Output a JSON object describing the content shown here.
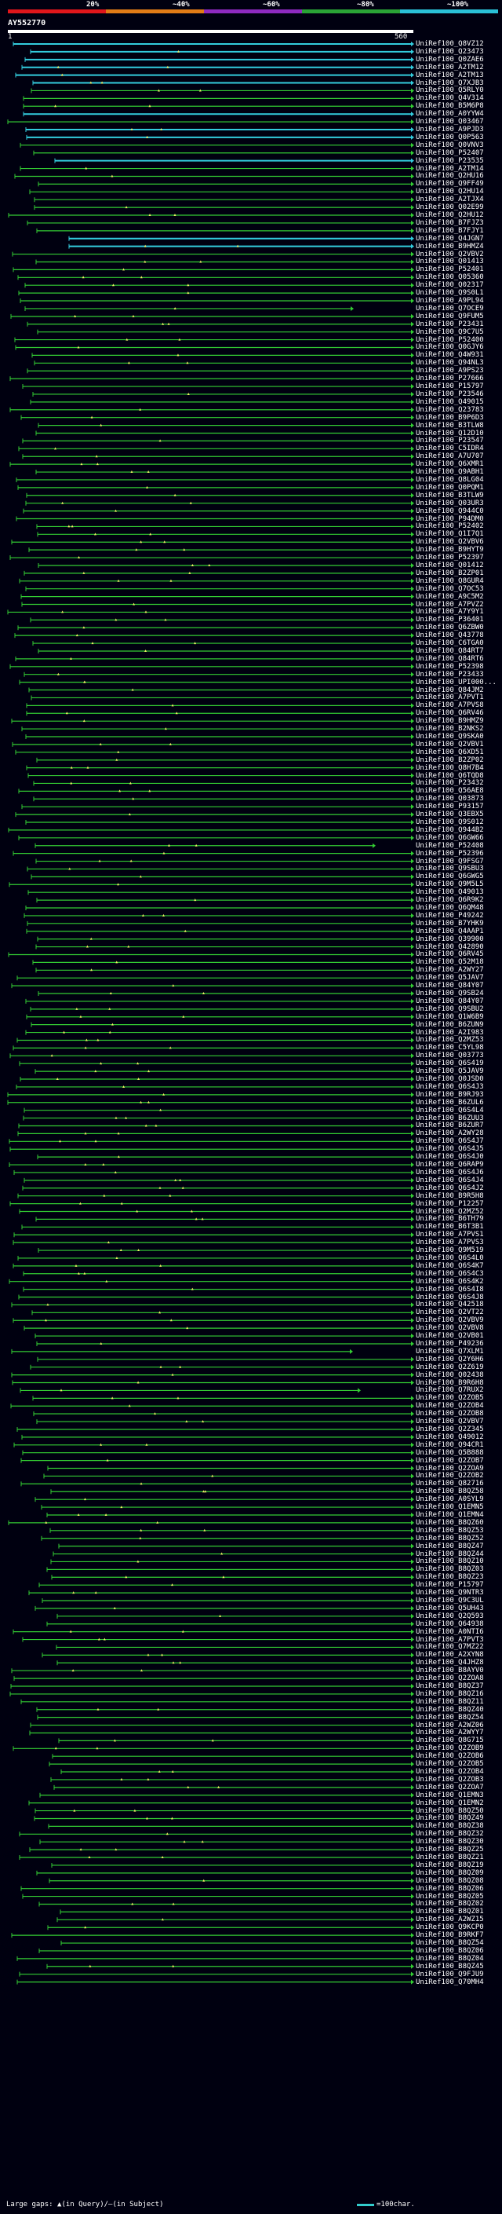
{
  "legend": {
    "labels": [
      "20%",
      "~40%",
      "~60%",
      "~80%",
      "~100%"
    ],
    "colors": [
      "#e0161b",
      "#e07b16",
      "#8e2ac0",
      "#2aa336",
      "#2ac0d6"
    ]
  },
  "query": {
    "id": "AY552770",
    "start": "1",
    "end": "560"
  },
  "footer": {
    "gaps_text": "Large gaps: ▲(in Query)/–(in Subject)",
    "scale_text": "=100char."
  },
  "hit_colors": {
    "high": "#33ccdd",
    "mid": "#33cc33"
  },
  "hits": [
    "UniRef100_Q8VZ12",
    "UniRef100_Q23473",
    "UniRef100_Q0ZAE6",
    "UniRef100_A2TM12",
    "UniRef100_A2TM13",
    "UniRef100_Q7XJB3",
    "UniRef100_Q5RLY0",
    "UniRef100_Q4V314",
    "UniRef100_B5M6P8",
    "UniRef100_A0YYW4",
    "UniRef100_Q03467",
    "UniRef100_A9PJD3",
    "UniRef100_Q0P563",
    "UniRef100_Q0VNV3",
    "UniRef100_P52407",
    "UniRef100_P23535",
    "UniRef100_A2TM14",
    "UniRef100_Q2HU16",
    "UniRef100_Q9FF49",
    "UniRef100_Q2HU14",
    "UniRef100_A2TJX4",
    "UniRef100_Q02E99",
    "UniRef100_Q2HU12",
    "UniRef100_B7FJZ3",
    "UniRef100_B7FJY1",
    "UniRef100_Q4JGN7",
    "UniRef100_B9HMZ4",
    "UniRef100_Q2VBV2",
    "UniRef100_Q01413",
    "UniRef100_P52401",
    "UniRef100_Q05360",
    "UniRef100_Q02317",
    "UniRef100_Q9S0L1",
    "UniRef100_A9PL94",
    "UniRef100_Q7OCE9",
    "UniRef100_Q9FUM5",
    "UniRef100_P23431",
    "UniRef100_Q9C7U5",
    "UniRef100_P52400",
    "UniRef100_Q0GJY6",
    "UniRef100_Q4W931",
    "UniRef100_Q94NL3",
    "UniRef100_A9PS23",
    "UniRef100_P27666",
    "UniRef100_P15797",
    "UniRef100_P23546",
    "UniRef100_Q49015",
    "UniRef100_Q23783",
    "UniRef100_B9P6D3",
    "UniRef100_B3TLW8",
    "UniRef100_Q12D10",
    "UniRef100_P23547",
    "UniRef100_C5IDR4",
    "UniRef100_A7U707",
    "UniRef100_Q6XMR1",
    "UniRef100_Q9ABH1",
    "UniRef100_Q8LG04",
    "UniRef100_Q0PQM1",
    "UniRef100_B3TLW9",
    "UniRef100_Q03UR3",
    "UniRef100_Q944C0",
    "UniRef100_P94DM0",
    "UniRef100_P52402",
    "UniRef100_Q1I7Q1",
    "UniRef100_Q2VBV6",
    "UniRef100_B9HYT9",
    "UniRef100_P52397",
    "UniRef100_Q01412",
    "UniRef100_B2ZP01",
    "UniRef100_Q8GUR4",
    "UniRef100_Q7OC53",
    "UniRef100_A9C5M2",
    "UniRef100_A7PVZ2",
    "UniRef100_A7Y9Y1",
    "UniRef100_P36401",
    "UniRef100_Q6ZBW0",
    "UniRef100_Q43778",
    "UniRef100_C6TGA0",
    "UniRef100_Q84RT7",
    "UniRef100_Q84RT6",
    "UniRef100_P52398",
    "UniRef100_P23433",
    "UniRef100_UPI000...",
    "UniRef100_Q84JM2",
    "UniRef100_A7PVT1",
    "UniRef100_A7PVS8",
    "UniRef100_Q6RV46",
    "UniRef100_B9HMZ9",
    "UniRef100_B2NKS2",
    "UniRef100_Q9SKA0",
    "UniRef100_Q2VBV1",
    "UniRef100_Q6XD51",
    "UniRef100_B2ZP02",
    "UniRef100_Q8H7B4",
    "UniRef100_Q6TQD8",
    "UniRef100_P23432",
    "UniRef100_Q56AE8",
    "UniRef100_Q03873",
    "UniRef100_P93157",
    "UniRef100_Q3EBX5",
    "UniRef100_Q9S012",
    "UniRef100_Q944B2",
    "UniRef100_Q6GW66",
    "UniRef100_P52408",
    "UniRef100_P52396",
    "UniRef100_Q9FSG7",
    "UniRef100_Q9SBU3",
    "UniRef100_Q6GWG5",
    "UniRef100_Q9M5L5",
    "UniRef100_Q49013",
    "UniRef100_Q6R9K2",
    "UniRef100_Q6QM48",
    "UniRef100_P49242",
    "UniRef100_B7YHK9",
    "UniRef100_Q4AAP1",
    "UniRef100_Q39900",
    "UniRef100_Q42890",
    "UniRef100_Q6RV45",
    "UniRef100_Q52M18",
    "UniRef100_A2WY27",
    "UniRef100_Q5JAV7",
    "UniRef100_Q84Y07",
    "UniRef100_Q9SB24",
    "UniRef100_Q84Y07",
    "UniRef100_Q9SBU2",
    "UniRef100_Q1W6B9",
    "UniRef100_B6ZUN9",
    "UniRef100_A2I983",
    "UniRef100_Q2MZ53",
    "UniRef100_C5YL98",
    "UniRef100_Q03773",
    "UniRef100_Q6S419",
    "UniRef100_Q5JAV9",
    "UniRef100_Q0JSD0",
    "UniRef100_Q6S4J3",
    "UniRef100_B9RJ93",
    "UniRef100_B6ZUL6",
    "UniRef100_Q6S4L4",
    "UniRef100_B6ZUU3",
    "UniRef100_B6ZUR7",
    "UniRef100_A2WY28",
    "UniRef100_Q6S4J7",
    "UniRef100_Q6S4J5",
    "UniRef100_Q6S4J0",
    "UniRef100_Q6RAP9",
    "UniRef100_Q6S4J6",
    "UniRef100_Q6S4J4",
    "UniRef100_Q6S4J2",
    "UniRef100_B9R5H8",
    "UniRef100_P12257",
    "UniRef100_Q2MZ52",
    "UniRef100_B6TH79",
    "UniRef100_B6T3B1",
    "UniRef100_A7PVS1",
    "UniRef100_A7PVS3",
    "UniRef100_Q9M519",
    "UniRef100_Q6S4L0",
    "UniRef100_Q6S4K7",
    "UniRef100_Q6S4C3",
    "UniRef100_Q6S4K2",
    "UniRef100_Q6S4I8",
    "UniRef100_Q6S4J8",
    "UniRef100_Q42518",
    "UniRef100_Q2VT22",
    "UniRef100_Q2VBV9",
    "UniRef100_Q2VBV8",
    "UniRef100_Q2VB01",
    "UniRef100_P49236",
    "UniRef100_Q7XLM1",
    "UniRef100_Q2Y6H6",
    "UniRef100_Q2Z619",
    "UniRef100_Q02438",
    "UniRef100_B9R6H8",
    "UniRef100_Q7RUX2",
    "UniRef100_Q2ZOB5",
    "UniRef100_Q2ZOB4",
    "UniRef100_Q2ZOB8",
    "UniRef100_Q2VBV7",
    "UniRef100_Q2Z345",
    "UniRef100_Q49012",
    "UniRef100_Q94CR1",
    "UniRef100_Q5B888",
    "UniRef100_Q2ZOB7",
    "UniRef100_Q2ZOA9",
    "UniRef100_Q2ZOB2",
    "UniRef100_Q82716",
    "UniRef100_B8QZ58",
    "UniRef100_A0SYL9",
    "UniRef100_Q1EMN5",
    "UniRef100_Q1EMN4",
    "UniRef100_B8QZ60",
    "UniRef100_B8QZ53",
    "UniRef100_B8QZ52",
    "UniRef100_B8QZ47",
    "UniRef100_B8QZ44",
    "UniRef100_B8QZ10",
    "UniRef100_B8QZ03",
    "UniRef100_B8QZ23",
    "UniRef100_P15797",
    "UniRef100_Q9NTR3",
    "UniRef100_Q9C3UL",
    "UniRef100_Q5UH43",
    "UniRef100_Q2Q593",
    "UniRef100_Q64938",
    "UniRef100_A0NTI6",
    "UniRef100_A7PVT3",
    "UniRef100_Q7MZ22",
    "UniRef100_A2XYN8",
    "UniRef100_Q4JHZ8",
    "UniRef100_B8AYV0",
    "UniRef100_Q2ZOA8",
    "UniRef100_B8QZ37",
    "UniRef100_B8QZ16",
    "UniRef100_B8QZ11",
    "UniRef100_B8QZ40",
    "UniRef100_B8QZ54",
    "UniRef100_A2WZ06",
    "UniRef100_A2WYY7",
    "UniRef100_Q8G715",
    "UniRef100_Q2ZOB9",
    "UniRef100_Q2ZOB6",
    "UniRef100_Q2ZOB5",
    "UniRef100_Q2ZOB4",
    "UniRef100_Q2ZOB3",
    "UniRef100_Q2ZOA7",
    "UniRef100_Q1EMN3",
    "UniRef100_Q1EMN2",
    "UniRef100_B8QZ50",
    "UniRef100_B8QZ49",
    "UniRef100_B8QZ38",
    "UniRef100_B8QZ32",
    "UniRef100_B8QZ30",
    "UniRef100_B8QZ25",
    "UniRef100_B8QZ21",
    "UniRef100_B8QZ19",
    "UniRef100_B8QZ09",
    "UniRef100_B8QZ08",
    "UniRef100_B8QZ06",
    "UniRef100_B8QZ05",
    "UniRef100_B8QZ02",
    "UniRef100_B8QZ01",
    "UniRef100_A2WZ15",
    "UniRef100_Q9KCP0",
    "UniRef100_B9RKF7",
    "UniRef100_B8QZ54",
    "UniRef100_B8QZ06",
    "UniRef100_B8QZ04",
    "UniRef100_B8QZ45",
    "UniRef100_Q9FJU9",
    "UniRef100_Q70MH4"
  ]
}
